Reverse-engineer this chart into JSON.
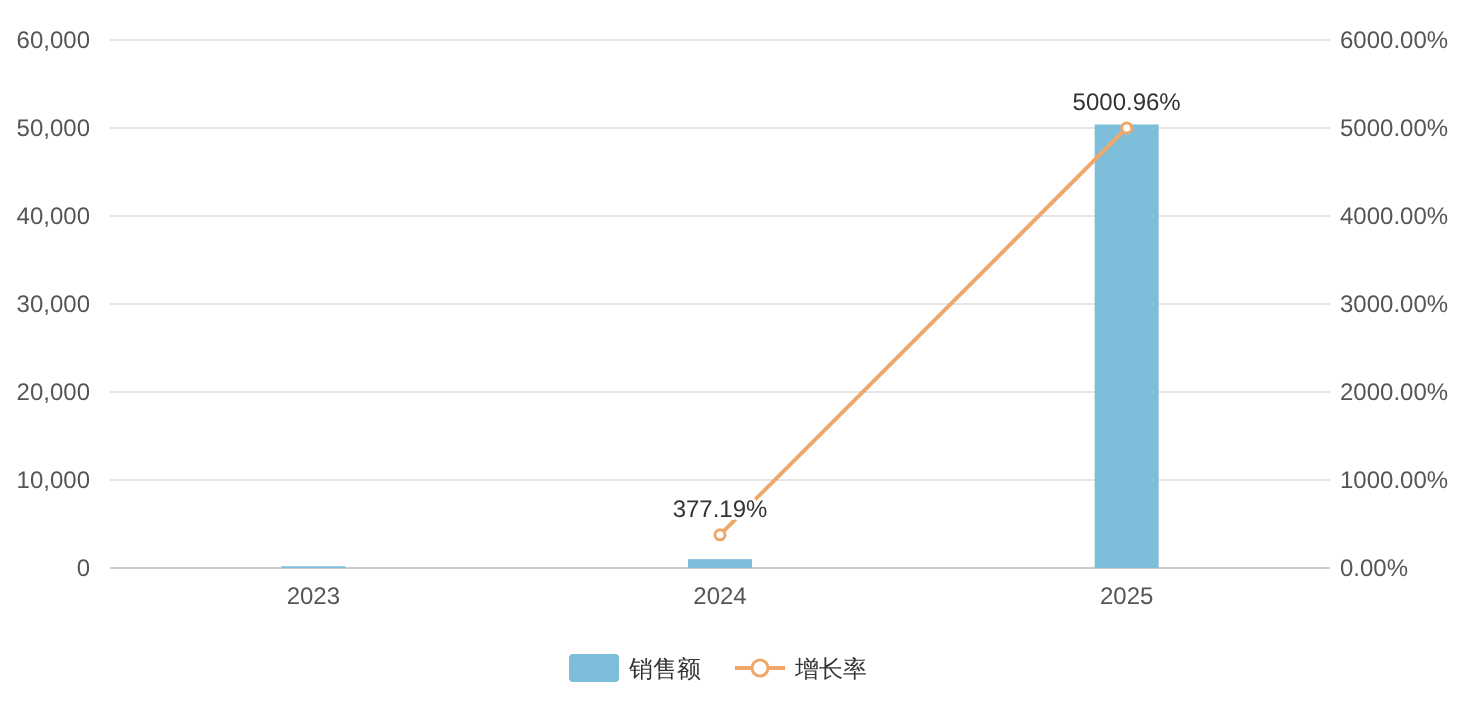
{
  "chart_data": {
    "type": "bar",
    "categories": [
      "2023",
      "2024",
      "2025"
    ],
    "series": [
      {
        "name": "销售额",
        "color": "#7ebedb",
        "values": [
          200,
          1000,
          50400
        ]
      },
      {
        "name": "增长率",
        "type": "line",
        "axis": "y2",
        "color": "#f0a868",
        "marker": "circle",
        "values": [
          null,
          377.19,
          5000.96
        ],
        "value_labels": [
          null,
          "377.19%",
          "5000.96%"
        ]
      }
    ],
    "ylim": [
      0,
      60000
    ],
    "yticks": [
      {
        "value": 0,
        "label": "0"
      },
      {
        "value": 10000,
        "label": "10,000"
      },
      {
        "value": 20000,
        "label": "20,000"
      },
      {
        "value": 30000,
        "label": "30,000"
      },
      {
        "value": 40000,
        "label": "40,000"
      },
      {
        "value": 50000,
        "label": "50,000"
      },
      {
        "value": 60000,
        "label": "60,000"
      }
    ],
    "y2lim": [
      0,
      6000
    ],
    "y2ticks": [
      {
        "value": 0,
        "label": "0.00%"
      },
      {
        "value": 1000,
        "label": "1000.00%"
      },
      {
        "value": 2000,
        "label": "2000.00%"
      },
      {
        "value": 3000,
        "label": "3000.00%"
      },
      {
        "value": 4000,
        "label": "4000.00%"
      },
      {
        "value": 5000,
        "label": "5000.00%"
      },
      {
        "value": 6000,
        "label": "6000.00%"
      }
    ],
    "grid": "y",
    "legend": "bottom"
  }
}
